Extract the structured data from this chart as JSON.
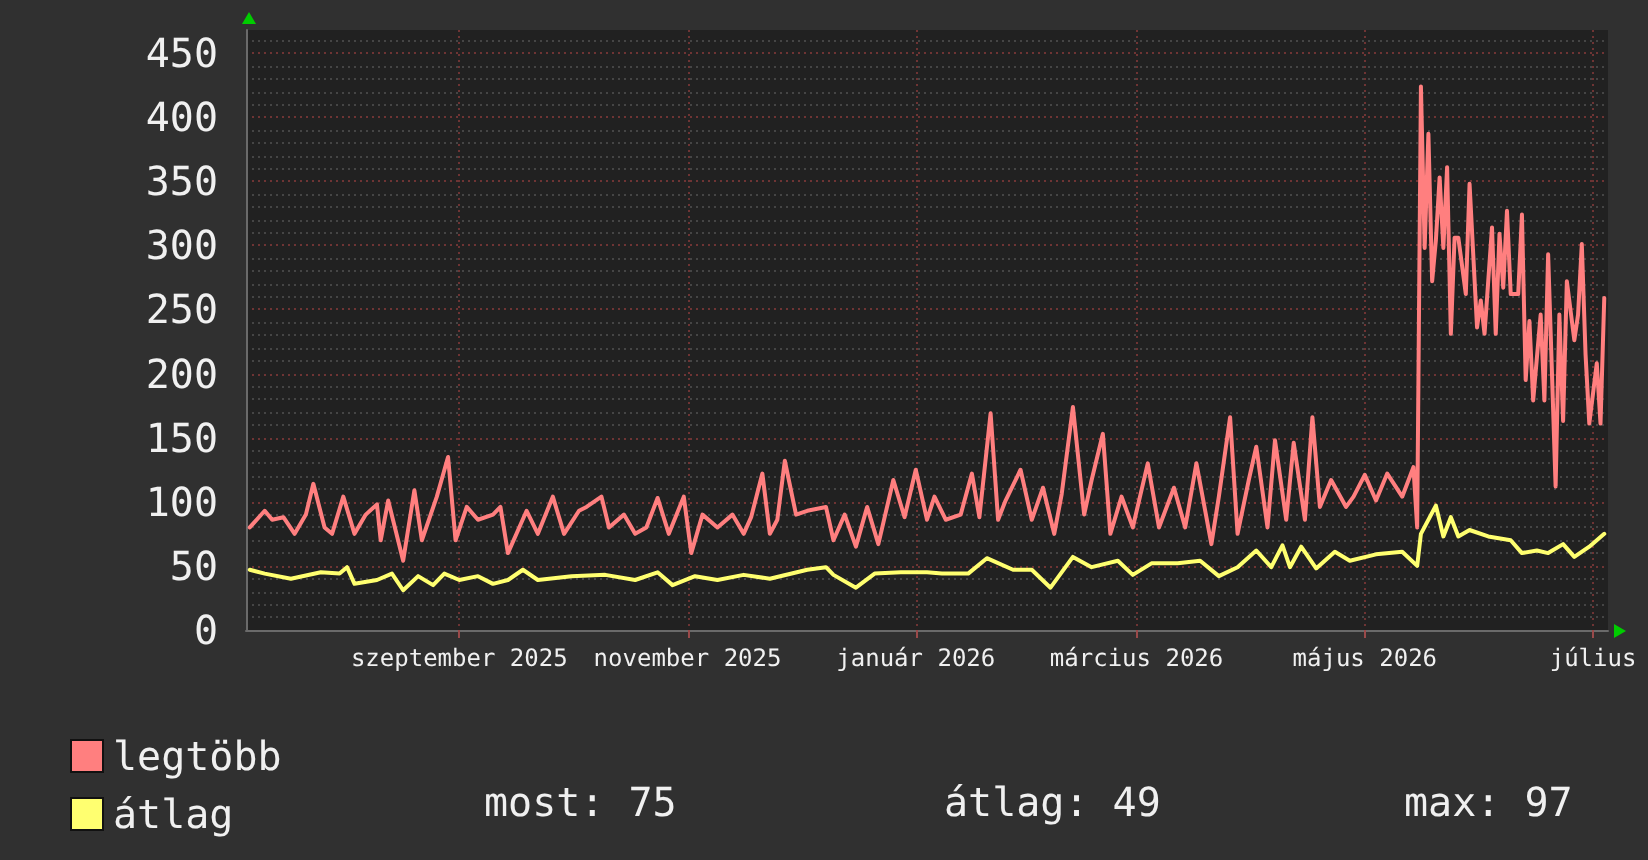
{
  "chart_data": {
    "type": "line",
    "xlim": [
      "2025-07-21",
      "2026-07-20"
    ],
    "xticks": [
      {
        "value": "2025-09-16",
        "label": "szeptember 2025"
      },
      {
        "value": "2025-11-16",
        "label": "november 2025"
      },
      {
        "value": "2026-01-16",
        "label": "január 2026"
      },
      {
        "value": "2026-03-16",
        "label": "március 2026"
      },
      {
        "value": "2026-05-16",
        "label": "május 2026"
      },
      {
        "value": "2026-07-16",
        "label": "július"
      }
    ],
    "ylim": [
      0,
      468
    ],
    "yticks": [
      0,
      50,
      100,
      150,
      200,
      250,
      300,
      350,
      400,
      450
    ],
    "grid": true,
    "legend": "bottom left",
    "marker": "none",
    "line_style": "solid",
    "series": [
      {
        "name": "legtöbb",
        "color": "#ff7f7f",
        "x": [
          "2025-07-22",
          "2025-07-26",
          "2025-07-28",
          "2025-07-31",
          "2025-08-03",
          "2025-08-06",
          "2025-08-08",
          "2025-08-11",
          "2025-08-13",
          "2025-08-16",
          "2025-08-19",
          "2025-08-22",
          "2025-08-25",
          "2025-08-26",
          "2025-08-28",
          "2025-09-01",
          "2025-09-04",
          "2025-09-06",
          "2025-09-10",
          "2025-09-13",
          "2025-09-15",
          "2025-09-18",
          "2025-09-21",
          "2025-09-25",
          "2025-09-27",
          "2025-09-29",
          "2025-10-04",
          "2025-10-07",
          "2025-10-11",
          "2025-10-14",
          "2025-10-18",
          "2025-10-20",
          "2025-10-24",
          "2025-10-26",
          "2025-10-30",
          "2025-11-02",
          "2025-11-05",
          "2025-11-08",
          "2025-11-11",
          "2025-11-15",
          "2025-11-17",
          "2025-11-20",
          "2025-11-24",
          "2025-11-28",
          "2025-12-01",
          "2025-12-03",
          "2025-12-06",
          "2025-12-08",
          "2025-12-10",
          "2025-12-12",
          "2025-12-15",
          "2025-12-18",
          "2025-12-23",
          "2025-12-25",
          "2025-12-28",
          "2025-12-31",
          "2026-01-03",
          "2026-01-06",
          "2026-01-10",
          "2026-01-13",
          "2026-01-16",
          "2026-01-19",
          "2026-01-21",
          "2026-01-24",
          "2026-01-28",
          "2026-01-31",
          "2026-02-02",
          "2026-02-05",
          "2026-02-07",
          "2026-02-09",
          "2026-02-13",
          "2026-02-16",
          "2026-02-19",
          "2026-02-22",
          "2026-02-24",
          "2026-02-27",
          "2026-03-02",
          "2026-03-04",
          "2026-03-07",
          "2026-03-09",
          "2026-03-12",
          "2026-03-15",
          "2026-03-19",
          "2026-03-22",
          "2026-03-26",
          "2026-03-29",
          "2026-04-01",
          "2026-04-05",
          "2026-04-07",
          "2026-04-10",
          "2026-04-12",
          "2026-04-15",
          "2026-04-17",
          "2026-04-20",
          "2026-04-22",
          "2026-04-25",
          "2026-04-27",
          "2026-04-30",
          "2026-05-02",
          "2026-05-04",
          "2026-05-07",
          "2026-05-11",
          "2026-05-13",
          "2026-05-16",
          "2026-05-19",
          "2026-05-22",
          "2026-05-26",
          "2026-05-29",
          "2026-05-30",
          "2026-05-31",
          "2026-06-01",
          "2026-06-02",
          "2026-06-03",
          "2026-06-04",
          "2026-06-05",
          "2026-06-06",
          "2026-06-07",
          "2026-06-08",
          "2026-06-09",
          "2026-06-10",
          "2026-06-12",
          "2026-06-13",
          "2026-06-15",
          "2026-06-16",
          "2026-06-17",
          "2026-06-19",
          "2026-06-20",
          "2026-06-21",
          "2026-06-22",
          "2026-06-23",
          "2026-06-24",
          "2026-06-26",
          "2026-06-27",
          "2026-06-28",
          "2026-06-29",
          "2026-06-30",
          "2026-07-02",
          "2026-07-03",
          "2026-07-04",
          "2026-07-06",
          "2026-07-07",
          "2026-07-08",
          "2026-07-09",
          "2026-07-11",
          "2026-07-12",
          "2026-07-13",
          "2026-07-14",
          "2026-07-15",
          "2026-07-17",
          "2026-07-18",
          "2026-07-19"
        ],
        "values": [
          80,
          93,
          86,
          88,
          75,
          90,
          114,
          80,
          75,
          104,
          75,
          90,
          98,
          70,
          101,
          54,
          109,
          70,
          104,
          135,
          70,
          96,
          86,
          90,
          96,
          60,
          93,
          75,
          104,
          75,
          93,
          96,
          104,
          80,
          90,
          75,
          80,
          103,
          75,
          104,
          60,
          90,
          80,
          90,
          75,
          88,
          122,
          75,
          86,
          132,
          90,
          93,
          96,
          70,
          90,
          65,
          96,
          67,
          117,
          88,
          125,
          86,
          104,
          86,
          90,
          122,
          88,
          169,
          86,
          101,
          125,
          86,
          111,
          75,
          106,
          174,
          90,
          117,
          153,
          75,
          104,
          80,
          130,
          80,
          111,
          80,
          130,
          67,
          104,
          166,
          75,
          117,
          143,
          80,
          148,
          86,
          146,
          86,
          166,
          96,
          117,
          96,
          104,
          121,
          101,
          122,
          104,
          127,
          80,
          424,
          298,
          387,
          272,
          304,
          353,
          298,
          361,
          231,
          306,
          306,
          262,
          348,
          236,
          257,
          231,
          314,
          231,
          309,
          267,
          327,
          262,
          262,
          324,
          195,
          241,
          179,
          246,
          179,
          293,
          112,
          246,
          163,
          272,
          226,
          246,
          301,
          215,
          161,
          208,
          161,
          259
        ]
      },
      {
        "name": "átlag",
        "color": "#ffff70",
        "x": [
          "2025-07-22",
          "2025-07-26",
          "2025-08-02",
          "2025-08-10",
          "2025-08-15",
          "2025-08-17",
          "2025-08-19",
          "2025-08-25",
          "2025-08-29",
          "2025-09-01",
          "2025-09-05",
          "2025-09-09",
          "2025-09-12",
          "2025-09-16",
          "2025-09-21",
          "2025-09-25",
          "2025-09-29",
          "2025-10-03",
          "2025-10-07",
          "2025-10-16",
          "2025-10-25",
          "2025-11-02",
          "2025-11-08",
          "2025-11-12",
          "2025-11-18",
          "2025-11-24",
          "2025-12-01",
          "2025-12-08",
          "2025-12-18",
          "2025-12-23",
          "2025-12-25",
          "2025-12-31",
          "2026-01-05",
          "2026-01-12",
          "2026-01-19",
          "2026-01-23",
          "2026-01-30",
          "2026-02-04",
          "2026-02-11",
          "2026-02-16",
          "2026-02-21",
          "2026-02-27",
          "2026-03-04",
          "2026-03-11",
          "2026-03-15",
          "2026-03-20",
          "2026-03-27",
          "2026-04-02",
          "2026-04-07",
          "2026-04-12",
          "2026-04-17",
          "2026-04-21",
          "2026-04-24",
          "2026-04-26",
          "2026-04-29",
          "2026-05-03",
          "2026-05-08",
          "2026-05-12",
          "2026-05-19",
          "2026-05-26",
          "2026-05-30",
          "2026-05-31",
          "2026-06-04",
          "2026-06-06",
          "2026-06-08",
          "2026-06-10",
          "2026-06-13",
          "2026-06-18",
          "2026-06-24",
          "2026-06-27",
          "2026-07-01",
          "2026-07-04",
          "2026-07-08",
          "2026-07-11",
          "2026-07-15",
          "2026-07-19"
        ],
        "values": [
          47,
          44,
          40,
          45,
          44,
          49,
          36,
          39,
          44,
          31,
          42,
          35,
          44,
          39,
          42,
          36,
          39,
          47,
          39,
          42,
          43,
          39,
          45,
          35,
          42,
          39,
          43,
          40,
          47,
          49,
          43,
          33,
          44,
          45,
          45,
          44,
          44,
          56,
          47,
          47,
          33,
          57,
          49,
          54,
          43,
          52,
          52,
          54,
          42,
          49,
          62,
          49,
          66,
          49,
          65,
          48,
          61,
          54,
          59,
          61,
          50,
          75,
          97,
          73,
          88,
          73,
          78,
          73,
          70,
          60,
          62,
          60,
          67,
          57,
          65,
          75
        ]
      }
    ],
    "annotations": [
      "most: 75",
      "átlag: 49",
      "max: 97"
    ]
  }
}
